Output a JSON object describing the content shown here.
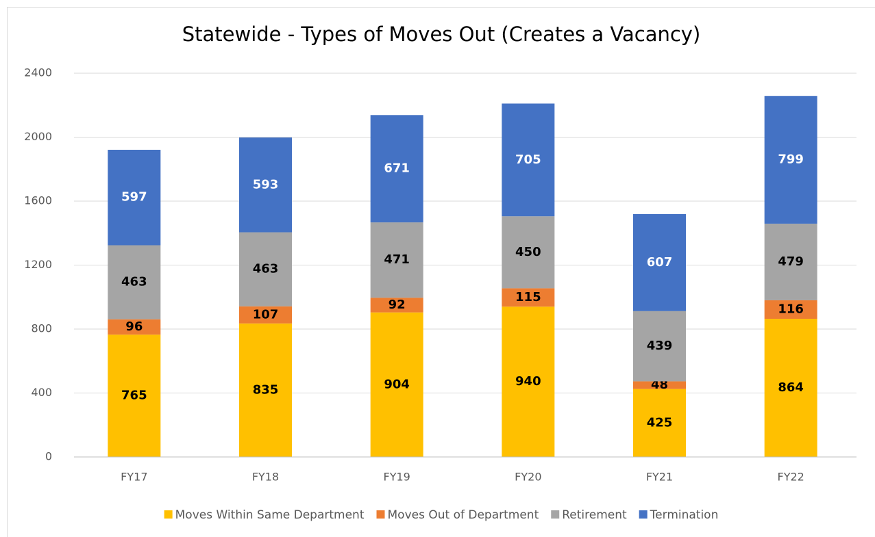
{
  "chart_data": {
    "type": "stacked_bar",
    "title": "Statewide - Types of Moves Out (Creates a Vacancy)",
    "categories": [
      "FY17",
      "FY18",
      "FY19",
      "FY20",
      "FY21",
      "FY22"
    ],
    "series": [
      {
        "name": "Moves Within Same Department",
        "color": "#FFC000",
        "label_color": "#000000",
        "values": [
          765,
          835,
          904,
          940,
          425,
          864
        ]
      },
      {
        "name": "Moves Out of Department",
        "color": "#ED7D31",
        "label_color": "#000000",
        "values": [
          96,
          107,
          92,
          115,
          48,
          116
        ]
      },
      {
        "name": "Retirement",
        "color": "#A5A5A5",
        "label_color": "#000000",
        "values": [
          463,
          463,
          471,
          450,
          439,
          479
        ]
      },
      {
        "name": "Termination",
        "color": "#4472C4",
        "label_color": "#FFFFFF",
        "values": [
          597,
          593,
          671,
          705,
          607,
          799
        ]
      }
    ],
    "ylim": [
      0,
      2400
    ],
    "yticks": [
      0,
      400,
      800,
      1200,
      1600,
      2000,
      2400
    ],
    "grid": true,
    "legend": "bottom"
  }
}
